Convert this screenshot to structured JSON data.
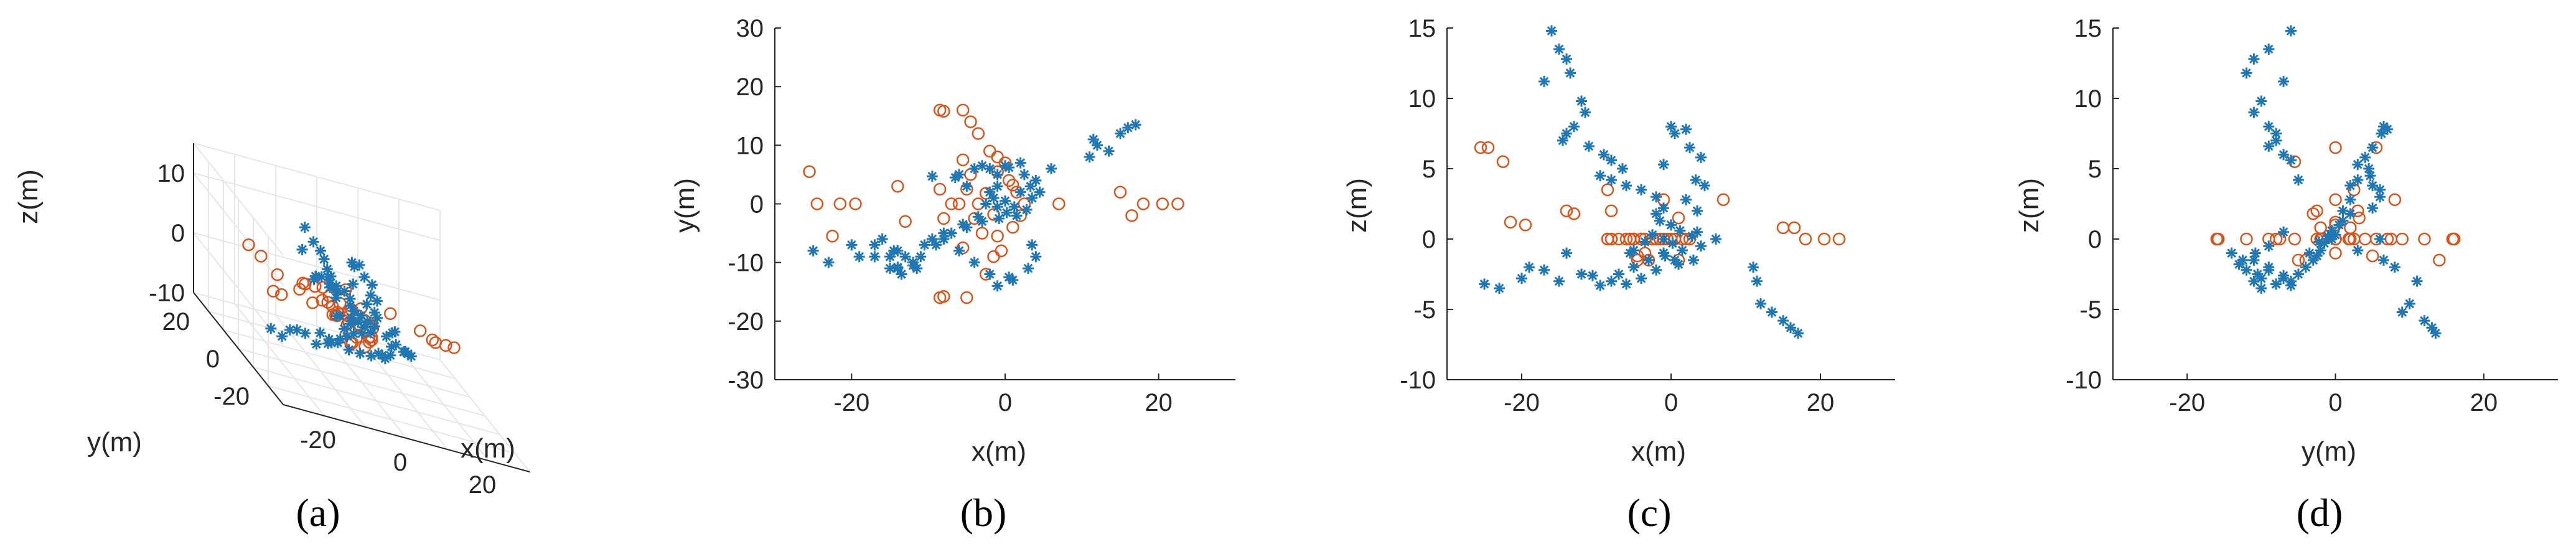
{
  "colors": {
    "blue": "#1f77b4",
    "orange": "#d9541a",
    "axis": "#262626",
    "grid": "#e6e6e6"
  },
  "captions": [
    "(a)",
    "(b)",
    "(c)",
    "(d)"
  ],
  "chart_data": [
    {
      "id": "a",
      "type": "scatter",
      "view": "3d",
      "xlabel": "x(m)",
      "ylabel": "y(m)",
      "zlabel": "z(m)",
      "xlim": [
        -30,
        30
      ],
      "ylim": [
        -30,
        30
      ],
      "zlim": [
        -10,
        15
      ],
      "xticks": [
        -20,
        0,
        20
      ],
      "yticks": [
        -20,
        0,
        20
      ],
      "zticks": [
        -10,
        0,
        10
      ],
      "grid": true,
      "series": [
        {
          "marker": "asterisk",
          "color": "#1f77b4",
          "points": "stars"
        },
        {
          "marker": "circle",
          "color": "#d9541a",
          "points": "circles"
        }
      ]
    },
    {
      "id": "b",
      "type": "scatter",
      "xlabel": "x(m)",
      "ylabel": "y(m)",
      "xlim": [
        -30,
        30
      ],
      "ylim": [
        -30,
        30
      ],
      "xticks": [
        -20,
        0,
        20
      ],
      "yticks": [
        -30,
        -20,
        -10,
        0,
        10,
        20,
        30
      ],
      "xdim": "x",
      "ydim": "y"
    },
    {
      "id": "c",
      "type": "scatter",
      "xlabel": "x(m)",
      "ylabel": "z(m)",
      "xlim": [
        -30,
        30
      ],
      "ylim": [
        -10,
        15
      ],
      "xticks": [
        -20,
        0,
        20
      ],
      "yticks": [
        -10,
        -5,
        0,
        5,
        10,
        15
      ],
      "xdim": "x",
      "ydim": "z"
    },
    {
      "id": "d",
      "type": "scatter",
      "xlabel": "y(m)",
      "ylabel": "z(m)",
      "xlim": [
        -30,
        30
      ],
      "ylim": [
        -10,
        15
      ],
      "xticks": [
        -20,
        0,
        20
      ],
      "yticks": [
        -10,
        -5,
        0,
        5,
        10,
        15
      ],
      "xdim": "y",
      "ydim": "z"
    }
  ],
  "points": {
    "stars": [
      [
        -16,
        -6,
        14.8
      ],
      [
        -15,
        -9,
        13.5
      ],
      [
        -14,
        -11,
        12.8
      ],
      [
        -13.5,
        -12,
        11.8
      ],
      [
        -17,
        -7,
        11.2
      ],
      [
        -12,
        -10,
        9.8
      ],
      [
        -11.5,
        -11,
        9.0
      ],
      [
        -13,
        -9,
        8.0
      ],
      [
        -14,
        -8,
        7.5
      ],
      [
        -14.5,
        -8,
        7.0
      ],
      [
        -11,
        -9,
        6.6
      ],
      [
        -9,
        -7,
        6.0
      ],
      [
        -8,
        -6,
        5.6
      ],
      [
        -6.5,
        4.5,
        5.0
      ],
      [
        -9.5,
        4.7,
        4.5
      ],
      [
        -6,
        5,
        3.8
      ],
      [
        -8,
        -5,
        4.2
      ],
      [
        -4,
        6,
        3.5
      ],
      [
        -2,
        6,
        3.0
      ],
      [
        -1,
        5,
        2.2
      ],
      [
        0,
        6.5,
        8.0
      ],
      [
        0.5,
        6.2,
        7.5
      ],
      [
        2,
        7,
        7.8
      ],
      [
        2.5,
        5,
        6.5
      ],
      [
        4,
        4,
        5.8
      ],
      [
        -1,
        3,
        5.3
      ],
      [
        3.3,
        3,
        4.2
      ],
      [
        4.5,
        2,
        3.8
      ],
      [
        2,
        2,
        2.8
      ],
      [
        3.5,
        1,
        2.0
      ],
      [
        -2,
        2,
        1.8
      ],
      [
        -1.5,
        1,
        1.3
      ],
      [
        0,
        0.5,
        1.0
      ],
      [
        1.2,
        -0.5,
        0.6
      ],
      [
        2.8,
        -1,
        0.2
      ],
      [
        -2.5,
        0,
        0.3
      ],
      [
        -1,
        -0.5,
        0.0
      ],
      [
        0.2,
        -1.5,
        -0.3
      ],
      [
        1.5,
        -2,
        -0.8
      ],
      [
        -0.8,
        -2.5,
        -1.2
      ],
      [
        -3,
        -3,
        -1.5
      ],
      [
        -5,
        -4,
        -2
      ],
      [
        -7,
        -5,
        -2.5
      ],
      [
        -8,
        -6,
        -3
      ],
      [
        -9.5,
        -6,
        -3.3
      ],
      [
        -10.5,
        -7,
        -2.6
      ],
      [
        -6,
        -8,
        -3.2
      ],
      [
        -4,
        -10,
        -2.8
      ],
      [
        -2,
        -12,
        -2.2
      ],
      [
        1,
        -13,
        -1.8
      ],
      [
        3,
        -11,
        -1.5
      ],
      [
        4,
        -9,
        -0.5
      ],
      [
        3.5,
        -7,
        0.5
      ],
      [
        -5.5,
        -3.5,
        -1.0
      ],
      [
        -3.5,
        -2.2,
        -0.2
      ],
      [
        -12,
        -10.5,
        -2.5
      ],
      [
        -15,
        -11,
        -3.0
      ],
      [
        -17,
        -9,
        -2.2
      ],
      [
        -20,
        -7,
        -2.8
      ],
      [
        -19,
        -9,
        -2.0
      ],
      [
        -23,
        -10,
        -3.5
      ],
      [
        -25,
        -8,
        -3.2
      ],
      [
        -14,
        -10.8,
        -1.0
      ],
      [
        -1,
        -14,
        -1.0
      ],
      [
        0.5,
        -12.5,
        -1.5
      ],
      [
        6,
        6,
        0.0
      ],
      [
        11,
        8,
        -2.0
      ],
      [
        11.5,
        11,
        -3.0
      ],
      [
        12,
        10,
        -4.6
      ],
      [
        13.5,
        9,
        -5.2
      ],
      [
        15,
        12,
        -5.8
      ],
      [
        16,
        13,
        -6.3
      ],
      [
        17,
        13.5,
        -6.7
      ],
      [
        -3,
        6.5,
        -1.5
      ],
      [
        -5,
        3,
        -0.8
      ]
    ],
    "circles": [
      [
        -25.5,
        5.5,
        6.5
      ],
      [
        -24.5,
        0,
        6.5
      ],
      [
        -22.5,
        -5.5,
        5.5
      ],
      [
        -21.5,
        0,
        1.2
      ],
      [
        -19.5,
        0,
        1.0
      ],
      [
        -14,
        3,
        2.0
      ],
      [
        -13,
        -3,
        1.8
      ],
      [
        -8.5,
        2.5,
        3.5
      ],
      [
        -8,
        -2.5,
        2.0
      ],
      [
        -8.5,
        16,
        0
      ],
      [
        -8,
        15.8,
        0
      ],
      [
        -8.5,
        -16,
        0
      ],
      [
        -8,
        -15.8,
        0
      ],
      [
        -5.5,
        16,
        0
      ],
      [
        -5,
        -16,
        0
      ],
      [
        -4.5,
        14,
        -1.5
      ],
      [
        -3.5,
        12,
        0
      ],
      [
        -2.5,
        -12,
        0
      ],
      [
        -2,
        9,
        0
      ],
      [
        -1.5,
        -9,
        0
      ],
      [
        -1,
        8,
        2.8
      ],
      [
        -0.5,
        -8,
        0
      ],
      [
        0,
        7,
        0
      ],
      [
        0.5,
        4,
        0
      ],
      [
        1,
        -4,
        -1.5
      ],
      [
        1.5,
        2,
        0
      ],
      [
        2,
        -2,
        0
      ],
      [
        2.5,
        0,
        0
      ],
      [
        -6,
        0,
        0
      ],
      [
        -5,
        2.5,
        0
      ],
      [
        -4,
        -2.5,
        0
      ],
      [
        -3.5,
        0,
        -1.0
      ],
      [
        -2.5,
        1.8,
        0
      ],
      [
        -1.5,
        -1.8,
        0
      ],
      [
        -4.5,
        5,
        -1.2
      ],
      [
        -3,
        -5,
        -1.5
      ],
      [
        7,
        0,
        2.8
      ],
      [
        15,
        2,
        0.8
      ],
      [
        16.5,
        -2,
        0.8
      ],
      [
        18,
        0,
        0
      ],
      [
        20.5,
        0,
        0
      ],
      [
        22.5,
        0,
        0
      ],
      [
        -5.5,
        -7.5,
        0
      ],
      [
        -5.5,
        7.5,
        0
      ],
      [
        -7,
        0,
        0
      ],
      [
        -1,
        5.5,
        0
      ],
      [
        -1,
        -5.5,
        0
      ],
      [
        1,
        3.2,
        1.5
      ]
    ]
  }
}
